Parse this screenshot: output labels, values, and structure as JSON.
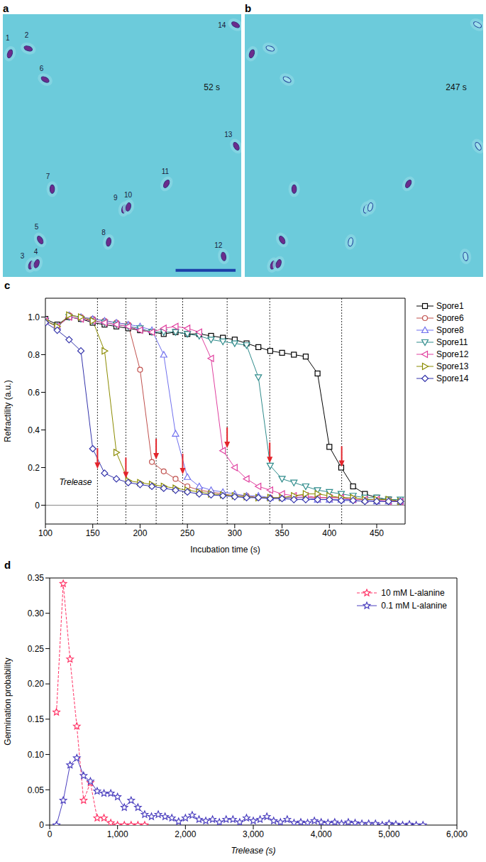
{
  "images": [
    {
      "letter": "a",
      "time": "52 s",
      "spore_labels": [
        "1",
        "2",
        "3",
        "4",
        "5",
        "6",
        "7",
        "8",
        "9",
        "10",
        "11",
        "12",
        "13",
        "14"
      ]
    },
    {
      "letter": "b",
      "time": "247 s"
    }
  ],
  "chart_data": [
    {
      "panel": "c",
      "type": "line",
      "x_label": "Incubation time (s)",
      "y_label": "Refractility (a.u.)",
      "xlim": [
        100,
        480
      ],
      "ylim": [
        -0.1,
        1.1
      ],
      "xticks": [
        100,
        150,
        200,
        250,
        300,
        350,
        400,
        450
      ],
      "yticks": [
        0,
        0.2,
        0.4,
        0.6,
        0.8,
        {
          "value": 1,
          "label": "1.0"
        }
      ],
      "legend": "right",
      "annotation": "Trelease",
      "release": {
        "x": [
          155,
          185,
          217,
          245,
          292,
          337,
          413
        ],
        "values": [
          0.19,
          0.14,
          0.24,
          0.16,
          0.3,
          0.22,
          0.2
        ],
        "color": "#e3242b"
      },
      "x": [
        100,
        112.5,
        125,
        137.5,
        150,
        162.5,
        175,
        187.5,
        200,
        212.5,
        225,
        237.5,
        250,
        262.5,
        275,
        287.5,
        300,
        312.5,
        325,
        337.5,
        350,
        362.5,
        375,
        387.5,
        400,
        412.5,
        425,
        437.5,
        450,
        462.5,
        475
      ],
      "series": [
        {
          "name": "Spore1",
          "color": "#000000",
          "marker": "square",
          "values": [
            0.99,
            0.96,
            1.0,
            0.99,
            0.97,
            0.96,
            0.95,
            0.94,
            0.93,
            0.92,
            0.91,
            0.92,
            0.91,
            0.91,
            0.9,
            0.89,
            0.88,
            0.86,
            0.84,
            0.82,
            0.81,
            0.8,
            0.79,
            0.7,
            0.31,
            0.2,
            0.1,
            0.06,
            0.04,
            0.03,
            0.02
          ]
        },
        {
          "name": "Spore6",
          "color": "#c0504d",
          "marker": "circle",
          "values": [
            0.98,
            0.95,
            1.01,
            1.0,
            0.99,
            0.98,
            0.97,
            0.96,
            0.72,
            0.23,
            0.18,
            0.14,
            0.1,
            0.08,
            0.07,
            0.06,
            0.05,
            0.05,
            0.04,
            0.04,
            0.04,
            0.04,
            0.04,
            0.04,
            0.04,
            0.04,
            0.03,
            0.03,
            0.03,
            0.03,
            0.02
          ]
        },
        {
          "name": "Spore8",
          "color": "#7070ee",
          "marker": "triangle-up",
          "values": [
            0.98,
            0.95,
            1.01,
            1.0,
            0.99,
            0.98,
            0.97,
            0.96,
            0.95,
            0.93,
            0.8,
            0.38,
            0.15,
            0.1,
            0.08,
            0.07,
            0.06,
            0.05,
            0.05,
            0.04,
            0.04,
            0.04,
            0.04,
            0.03,
            0.03,
            0.03,
            0.03,
            0.03,
            0.02,
            0.02,
            0.02
          ]
        },
        {
          "name": "Spore11",
          "color": "#2e8b8b",
          "marker": "triangle-down",
          "values": [
            0.98,
            0.95,
            1.0,
            0.99,
            0.98,
            0.97,
            0.96,
            0.95,
            0.94,
            0.92,
            0.92,
            0.92,
            0.91,
            0.9,
            0.88,
            0.87,
            0.86,
            0.85,
            0.68,
            0.21,
            0.14,
            0.12,
            0.1,
            0.08,
            0.07,
            0.06,
            0.05,
            0.04,
            0.04,
            0.03,
            0.03
          ]
        },
        {
          "name": "Spore12",
          "color": "#e0409f",
          "marker": "triangle-left",
          "values": [
            0.98,
            0.95,
            1.0,
            0.99,
            0.98,
            0.97,
            0.96,
            0.95,
            0.93,
            0.92,
            0.94,
            0.95,
            0.94,
            0.92,
            0.78,
            0.29,
            0.2,
            0.14,
            0.1,
            0.08,
            0.06,
            0.05,
            0.05,
            0.04,
            0.04,
            0.04,
            0.03,
            0.03,
            0.03,
            0.02,
            0.02
          ]
        },
        {
          "name": "Spore13",
          "color": "#8b8b00",
          "marker": "triangle-right",
          "values": [
            0.98,
            0.95,
            1.01,
            1.0,
            0.98,
            0.82,
            0.28,
            0.13,
            0.12,
            0.11,
            0.1,
            0.09,
            0.08,
            0.07,
            0.06,
            0.055,
            0.05,
            0.045,
            0.04,
            0.04,
            0.04,
            0.05,
            0.06,
            0.06,
            0.05,
            0.04,
            0.04,
            0.03,
            0.03,
            0.03,
            0.02
          ]
        },
        {
          "name": "Spore14",
          "color": "#3333aa",
          "marker": "diamond",
          "values": [
            0.97,
            0.93,
            0.88,
            0.82,
            0.3,
            0.17,
            0.14,
            0.12,
            0.11,
            0.1,
            0.09,
            0.08,
            0.07,
            0.06,
            0.055,
            0.05,
            0.045,
            0.04,
            0.04,
            0.035,
            0.035,
            0.03,
            0.03,
            0.03,
            0.03,
            0.025,
            0.025,
            0.02,
            0.02,
            0.02,
            0.02
          ]
        }
      ]
    },
    {
      "panel": "d",
      "type": "line",
      "x_label": "Trelease (s)",
      "y_label": "Germination probability",
      "xlim": [
        0,
        6000
      ],
      "ylim": [
        0,
        0.35
      ],
      "xticks": [
        0,
        {
          "value": 1000,
          "label": "1,000"
        },
        {
          "value": 2000,
          "label": "2,000"
        },
        {
          "value": 3000,
          "label": "3,000"
        },
        {
          "value": 4000,
          "label": "4,000"
        },
        {
          "value": 5000,
          "label": "5,000"
        },
        {
          "value": 6000,
          "label": "6,000"
        }
      ],
      "yticks": [
        0,
        0.05,
        {
          "value": 0.1,
          "label": "0.10"
        },
        0.15,
        {
          "value": 0.2,
          "label": "0.20"
        },
        0.25,
        {
          "value": 0.3,
          "label": "0.30"
        },
        0.35
      ],
      "legend": "upper right",
      "series": [
        {
          "name": "10 mM L-alanine",
          "color": "#ff3366",
          "marker": "star",
          "x": [
            100,
            200,
            300,
            400,
            500,
            600,
            700,
            800,
            900,
            1000,
            1100,
            1200,
            1300,
            1400
          ],
          "values": [
            0.16,
            0.342,
            0.235,
            0.14,
            0.035,
            0.06,
            0.01,
            0.01,
            0.003,
            0,
            0,
            0,
            0,
            0
          ]
        },
        {
          "name": "0.1 mM L-alanine",
          "color": "#4b3fbf",
          "marker": "star",
          "x": [
            100,
            200,
            300,
            400,
            500,
            600,
            700,
            800,
            900,
            1000,
            1100,
            1200,
            1300,
            1400,
            1500,
            1600,
            1700,
            1800,
            1900,
            2000,
            2100,
            2200,
            2300,
            2400,
            2500,
            2600,
            2700,
            2800,
            2900,
            3000,
            3100,
            3200,
            3300,
            3400,
            3500,
            3600,
            3700,
            3800,
            3900,
            4000,
            4100,
            4200,
            4300,
            4400,
            4500,
            4600,
            4700,
            4800,
            4900,
            5000,
            5100,
            5200,
            5300,
            5400,
            5500
          ],
          "values": [
            0,
            0.035,
            0.085,
            0.095,
            0.07,
            0.062,
            0.048,
            0.045,
            0.045,
            0.04,
            0.025,
            0.035,
            0.025,
            0.015,
            0.012,
            0.015,
            0.012,
            0.01,
            0.005,
            0.01,
            0.014,
            0.008,
            0.006,
            0.008,
            0.004,
            0.008,
            0.008,
            0.004,
            0.01,
            0.006,
            0.008,
            0.012,
            0.006,
            0.004,
            0.008,
            0.003,
            0.004,
            0.003,
            0.006,
            0.004,
            0.003,
            0.004,
            0.002,
            0.004,
            0.003,
            0.002,
            0.002,
            0.002,
            0,
            0.002,
            0.001,
            0,
            0.001,
            0,
            0
          ]
        }
      ]
    }
  ]
}
